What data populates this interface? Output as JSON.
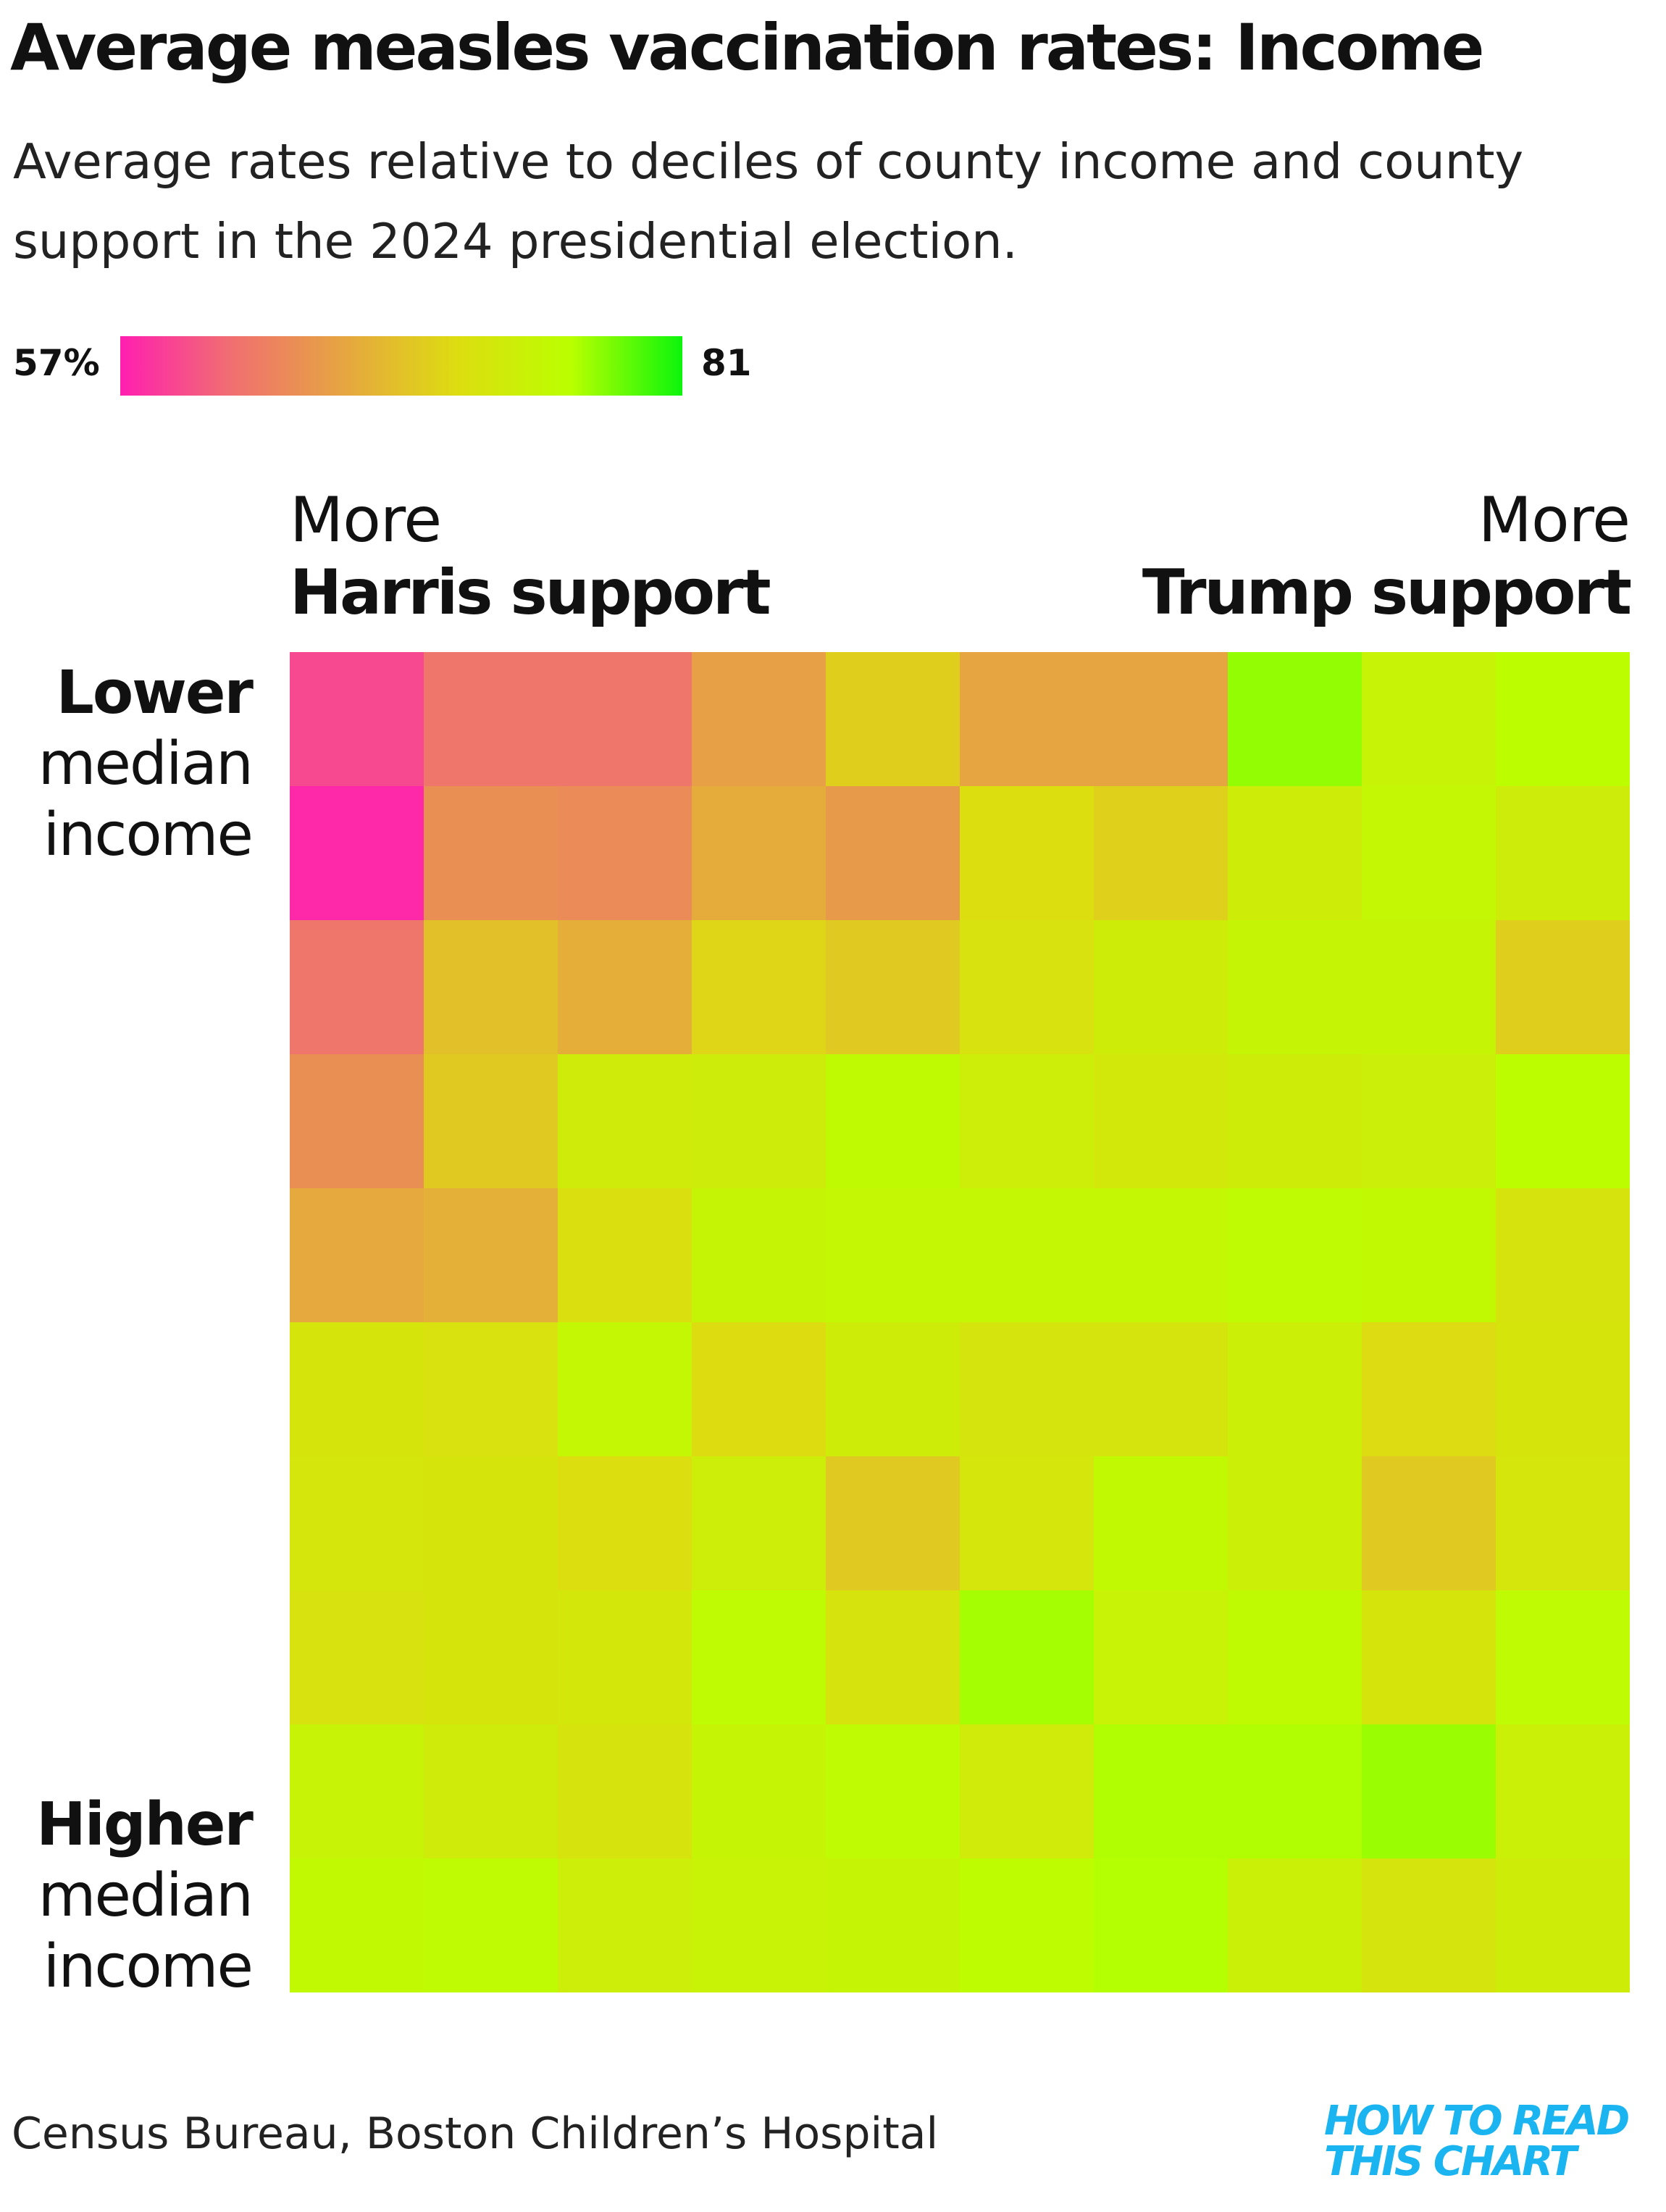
{
  "title": "Average measles vaccination rates: Income",
  "subtitle": "Average rates relative to deciles of county income and county support in the 2024 presidential election.",
  "legend": {
    "min_label": "57%",
    "max_label": "81",
    "colors": [
      "#ff1fb0",
      "#f07070",
      "#e6a640",
      "#dddd10",
      "#bbff00",
      "#0cf50c"
    ]
  },
  "axes": {
    "left_line1": "More",
    "left_line2": "Harris support",
    "right_line1": "More",
    "right_line2": "Trump support",
    "top_line1": "Lower",
    "top_line2": "median",
    "top_line3": "income",
    "bottom_line1": "Higher",
    "bottom_line2": "median",
    "bottom_line3": "income"
  },
  "source": "Census Bureau, Boston Children’s Hospital",
  "logo": {
    "line1": "HOW TO READ",
    "line2": "THIS CHART"
  },
  "chart_data": {
    "type": "heatmap",
    "x_description": "deciles of county support in the 2024 presidential election (More Harris support → More Trump support)",
    "y_description": "deciles of county median income (Lower → Higher)",
    "color_scale": [
      57,
      81
    ],
    "values": [
      [
        59.5,
        62.3,
        62.3,
        66.1,
        70.2,
        66.5,
        66.5,
        77.3,
        74.5,
        76.1
      ],
      [
        57.6,
        64.6,
        64.2,
        67.1,
        65.5,
        71.6,
        70.3,
        73.6,
        75.0,
        73.5
      ],
      [
        62.3,
        68.9,
        67.3,
        70.8,
        69.7,
        72.1,
        73.6,
        74.6,
        74.8,
        70.2
      ],
      [
        64.6,
        69.7,
        73.4,
        73.5,
        75.5,
        73.8,
        72.9,
        73.7,
        73.9,
        76.1
      ],
      [
        66.9,
        67.5,
        71.8,
        74.8,
        75.0,
        75.0,
        75.0,
        75.6,
        75.3,
        72.3
      ],
      [
        72.5,
        71.9,
        75.0,
        71.3,
        73.6,
        72.4,
        72.4,
        74.0,
        71.2,
        72.5
      ],
      [
        72.7,
        72.5,
        71.5,
        73.8,
        69.7,
        72.7,
        75.3,
        74.0,
        69.7,
        72.7
      ],
      [
        72.1,
        72.5,
        72.8,
        75.6,
        72.2,
        76.8,
        74.4,
        75.5,
        72.5,
        75.6
      ],
      [
        74.5,
        73.4,
        72.2,
        74.6,
        75.6,
        73.2,
        76.5,
        76.5,
        77.1,
        74.1
      ],
      [
        75.3,
        75.6,
        73.8,
        74.4,
        74.7,
        75.8,
        76.4,
        74.1,
        72.4,
        73.6
      ]
    ]
  }
}
